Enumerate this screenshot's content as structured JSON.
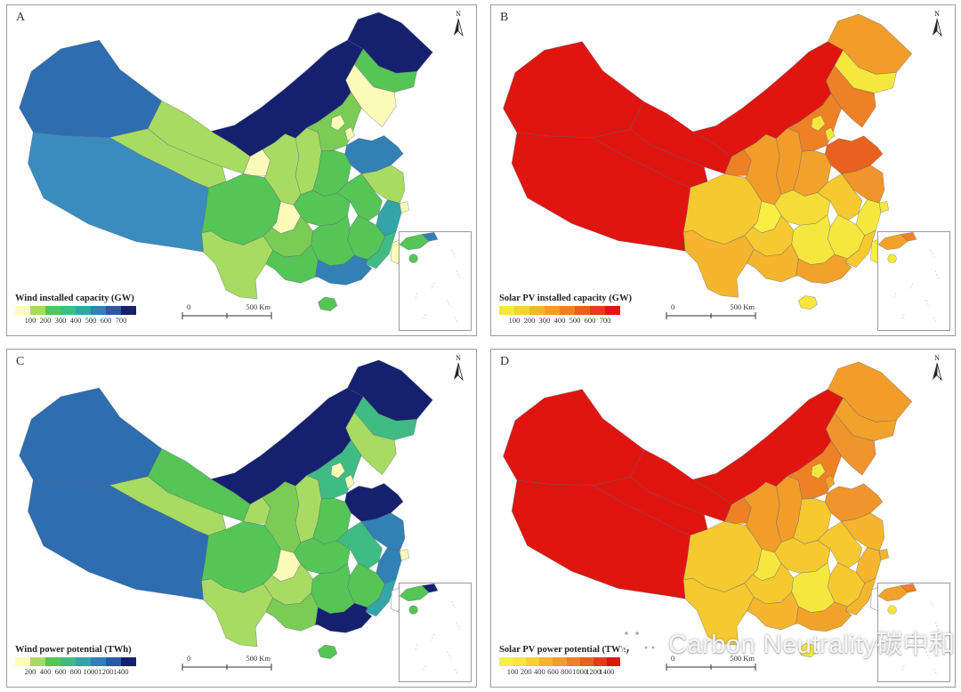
{
  "panels": [
    {
      "label": "A",
      "north": "N",
      "legend": {
        "title": "Wind installed capacity (GW)",
        "ticks": [
          "100",
          "200",
          "300",
          "400",
          "500",
          "600",
          "700"
        ],
        "colors": [
          "#FCFCB8",
          "#A8DB62",
          "#55C556",
          "#3FBC84",
          "#33A5A8",
          "#2F7FB9",
          "#2C59A7",
          "#15216E"
        ]
      },
      "scalebar": {
        "left": "0",
        "right": "500 Km"
      },
      "fills": {
        "XJ": "#2E6DAF",
        "XZ": "#3B8CBE",
        "QH": "#A8DB62",
        "GS": "#A8DB62",
        "NX": "#FCFCB8",
        "NM": "#15216E",
        "HLJ": "#15216E",
        "JL": "#55C556",
        "LN": "#FCFCB8",
        "BJ": "#FCFCB8",
        "TJ": "#FCFCB8",
        "HEB": "#7ACC55",
        "SX": "#A8DB62",
        "SD": "#3380B5",
        "SAX": "#A8DB62",
        "HEN": "#55C556",
        "JS": "#A8DB62",
        "SH": "#FCFCB8",
        "AH": "#55C556",
        "HUB": "#55C556",
        "CQ": "#FCFCB8",
        "SC": "#55C556",
        "ZJ": "#33A5A8",
        "JX": "#55C556",
        "FJ": "#3FBC84",
        "HUN": "#55C556",
        "GZ": "#7ACC55",
        "YN": "#A8DB62",
        "GX": "#55C556",
        "GD": "#3380B5",
        "HI": "#55C556",
        "TW": "#FCFCB8"
      },
      "inset": {
        "fills": [
          "#55C556",
          "#3380B5",
          "#55C556"
        ]
      }
    },
    {
      "label": "B",
      "north": "N",
      "legend": {
        "title": "Solar PV installed capacity (GW)",
        "ticks": [
          "100",
          "200",
          "300",
          "400",
          "500",
          "600",
          "700"
        ],
        "colors": [
          "#F5E73D",
          "#F7D232",
          "#F5B52E",
          "#F29D2A",
          "#EE8126",
          "#E9611F",
          "#E43C18",
          "#E0150F"
        ]
      },
      "scalebar": {
        "left": "0",
        "right": "500 Km"
      },
      "fills": {
        "XJ": "#E0150F",
        "XZ": "#E0150F",
        "QH": "#E0150F",
        "GS": "#E0150F",
        "NX": "#EE8126",
        "NM": "#E0150F",
        "HLJ": "#F29D2A",
        "JL": "#F5E73D",
        "LN": "#EE8126",
        "BJ": "#F5E73D",
        "TJ": "#F5E73D",
        "HEB": "#EE8126",
        "SX": "#F29D2A",
        "SD": "#E9611F",
        "SAX": "#F29D2A",
        "HEN": "#F2A22B",
        "JS": "#F0952B",
        "SH": "#F5E73D",
        "AH": "#F6C930",
        "HUB": "#F5DC36",
        "CQ": "#F8EE44",
        "SC": "#F6C930",
        "ZJ": "#F5E73D",
        "JX": "#F5E73D",
        "FJ": "#F6C930",
        "HUN": "#F5E73D",
        "GZ": "#F6C930",
        "YN": "#F5B52E",
        "GX": "#F5B52E",
        "GD": "#F2A22B",
        "HI": "#F5E73D",
        "TW": "#F8EE44"
      },
      "inset": {
        "fills": [
          "#F2A22B",
          "#EE8126",
          "#F5E73D"
        ]
      }
    },
    {
      "label": "C",
      "north": "N",
      "legend": {
        "title": "Wind power potential (TWh)",
        "ticks": [
          "200",
          "400",
          "600",
          "800",
          "1000",
          "1200",
          "1400"
        ],
        "colors": [
          "#FCFCB8",
          "#A8DB62",
          "#55C556",
          "#3FBC84",
          "#33A5A8",
          "#2F7FB9",
          "#2C59A7",
          "#15216E"
        ]
      },
      "scalebar": {
        "left": "0",
        "right": "500 Km"
      },
      "fills": {
        "XJ": "#2E6DAF",
        "XZ": "#2E6DAF",
        "QH": "#A8DB62",
        "GS": "#55C556",
        "NX": "#A8DB62",
        "NM": "#15216E",
        "HLJ": "#15216E",
        "JL": "#3FBC84",
        "LN": "#A8DB62",
        "BJ": "#FCFCB8",
        "TJ": "#FCFCB8",
        "HEB": "#3FBC84",
        "SX": "#A8DB62",
        "SD": "#15216E",
        "SAX": "#7ACC55",
        "HEN": "#55C556",
        "JS": "#3380B5",
        "SH": "#FCFCB8",
        "AH": "#3FBC84",
        "HUB": "#55C556",
        "CQ": "#FCFCB8",
        "SC": "#55C556",
        "ZJ": "#3380B5",
        "JX": "#55C556",
        "FJ": "#33A5A8",
        "HUN": "#55C556",
        "GZ": "#A8DB62",
        "YN": "#A8DB62",
        "GX": "#7ACC55",
        "GD": "#15216E",
        "HI": "#55C556",
        "TW": "#FFFFFF"
      },
      "inset": {
        "fills": [
          "#55C556",
          "#15216E",
          "#55C556"
        ]
      }
    },
    {
      "label": "D",
      "north": "N",
      "legend": {
        "title": "Solar PV power potential (TWh)",
        "ticks": [
          "100",
          "200",
          "400",
          "600",
          "800",
          "1000",
          "1200",
          "1400"
        ],
        "colors": [
          "#F8EE44",
          "#F5E73D",
          "#F7D232",
          "#F5B52E",
          "#F29D2A",
          "#EE8126",
          "#E9611F",
          "#E43C18",
          "#E0150F"
        ]
      },
      "scalebar": {
        "left": "0",
        "right": "500 Km"
      },
      "fills": {
        "XJ": "#E0150F",
        "XZ": "#E0150F",
        "QH": "#E0150F",
        "GS": "#E0150F",
        "NX": "#EE8126",
        "NM": "#E0150F",
        "HLJ": "#F29D2A",
        "JL": "#F2A22B",
        "LN": "#F0952B",
        "BJ": "#F5E73D",
        "TJ": "#F2A22B",
        "HEB": "#EE8126",
        "SX": "#F29D2A",
        "SD": "#F0952B",
        "SAX": "#F29D2A",
        "HEN": "#F6C930",
        "JS": "#F5B52E",
        "SH": "#F5B52E",
        "AH": "#F6C930",
        "HUB": "#F6C930",
        "CQ": "#F5E73D",
        "SC": "#F6C930",
        "ZJ": "#F5B52E",
        "JX": "#F6C930",
        "FJ": "#F5B52E",
        "HUN": "#F5E73D",
        "GZ": "#F6C930",
        "YN": "#F6C930",
        "GX": "#F5B52E",
        "GD": "#F2A22B",
        "HI": "#F5E73D",
        "TW": "#FFFFFF"
      },
      "inset": {
        "fills": [
          "#F2A22B",
          "#EE8126",
          "#F5E73D"
        ]
      }
    }
  ],
  "watermark": {
    "text": "Carbon Neutrality碳中和"
  }
}
